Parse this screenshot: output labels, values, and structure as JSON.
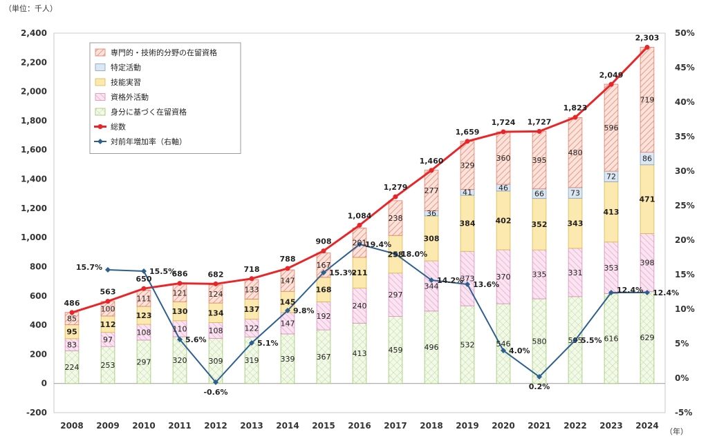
{
  "chart_data": {
    "type": "bar",
    "unit_label": "（単位：千人）",
    "x_unit": "（年）",
    "categories": [
      "2008",
      "2009",
      "2010",
      "2011",
      "2012",
      "2013",
      "2014",
      "2015",
      "2016",
      "2017",
      "2018",
      "2019",
      "2020",
      "2021",
      "2022",
      "2023",
      "2024"
    ],
    "stack_order": [
      "身分に基づく在留資格",
      "資格外活動",
      "技能実習",
      "特定活動",
      "専門的・技術的分野の在留資格"
    ],
    "series": [
      {
        "name": "専門的・技術的分野の在留資格",
        "pattern": "diag",
        "color": "#f4b8a8",
        "stroke": "#e07a62",
        "values": [
          85,
          100,
          111,
          121,
          124,
          133,
          147,
          167,
          201,
          238,
          277,
          329,
          360,
          395,
          480,
          596,
          719
        ],
        "labels": [
          "85",
          "100",
          "111",
          "121",
          "124",
          "133",
          "147",
          "167",
          "201",
          "238",
          "277",
          "329",
          "360",
          "395",
          "480",
          "596",
          "719"
        ]
      },
      {
        "name": "特定活動",
        "pattern": "solid",
        "color": "#dbe8f3",
        "stroke": "#7f9fbf",
        "values": [
          0,
          0,
          0,
          0,
          0,
          0,
          0,
          0,
          0,
          0,
          36,
          41,
          46,
          66,
          73,
          72,
          86
        ],
        "labels": [
          "",
          "",
          "",
          "",
          "",
          "",
          "",
          "",
          "",
          "",
          "36",
          "41",
          "46",
          "66",
          "73",
          "72",
          "86"
        ]
      },
      {
        "name": "技能実習",
        "pattern": "solid",
        "color": "#fce9b0",
        "stroke": "#d9b84a",
        "values": [
          95,
          112,
          123,
          130,
          134,
          137,
          145,
          168,
          211,
          258,
          308,
          384,
          402,
          352,
          343,
          413,
          471
        ],
        "labels": [
          "95",
          "112",
          "123",
          "130",
          "134",
          "137",
          "145",
          "168",
          "211",
          "258",
          "308",
          "384",
          "402",
          "352",
          "343",
          "413",
          "471"
        ]
      },
      {
        "name": "資格外活動",
        "pattern": "diag2",
        "color": "#f7d6ea",
        "stroke": "#d98ab9",
        "values": [
          83,
          97,
          108,
          110,
          108,
          122,
          147,
          192,
          240,
          297,
          344,
          373,
          370,
          335,
          331,
          353,
          398
        ],
        "labels": [
          "83",
          "97",
          "108",
          "110",
          "108",
          "122",
          "147",
          "192",
          "240",
          "297",
          "344",
          "373",
          "370",
          "335",
          "331",
          "353",
          "398"
        ]
      },
      {
        "name": "身分に基づく在留資格",
        "pattern": "cross",
        "color": "#e8f3d3",
        "stroke": "#9cc46b",
        "values": [
          224,
          253,
          297,
          320,
          309,
          319,
          339,
          367,
          413,
          459,
          496,
          532,
          546,
          580,
          595,
          616,
          629
        ],
        "labels": [
          "224",
          "253",
          "297",
          "320",
          "309",
          "319",
          "339",
          "367",
          "413",
          "459",
          "496",
          "532",
          "546",
          "580",
          "595",
          "616",
          "629"
        ]
      }
    ],
    "total": {
      "name": "総数",
      "color": "#e8262a",
      "values": [
        486,
        563,
        650,
        686,
        682,
        718,
        788,
        908,
        1084,
        1279,
        1460,
        1659,
        1724,
        1727,
        1823,
        2049,
        2303
      ],
      "labels": [
        "486",
        "563",
        "650",
        "686",
        "682",
        "718",
        "788",
        "908",
        "1,084",
        "1,279",
        "1,460",
        "1,659",
        "1,724",
        "1,727",
        "1,823",
        "2,049",
        "2,303"
      ]
    },
    "growth": {
      "name": "対前年増加率（右軸）",
      "color": "#2d5f8f",
      "values": [
        null,
        15.7,
        15.5,
        5.6,
        -0.6,
        5.1,
        9.8,
        15.3,
        19.4,
        18.0,
        14.2,
        13.6,
        4.0,
        0.2,
        5.5,
        12.4,
        12.4
      ],
      "labels": [
        "",
        "15.7%",
        "15.5%",
        "5.6%",
        "-0.6%",
        "5.1%",
        "9.8%",
        "15.3%",
        "19.4%",
        "18.0%",
        "14.2%",
        "13.6%",
        "4.0%",
        "0.2%",
        "5.5%",
        "12.4%",
        "12.4%"
      ]
    },
    "bold_series": [
      "技能実習"
    ],
    "y_left": {
      "min": -200,
      "max": 2400,
      "ticks": [
        -200,
        0,
        200,
        400,
        600,
        800,
        1000,
        1200,
        1400,
        1600,
        1800,
        2000,
        2200,
        2400
      ],
      "tick_labels": [
        "-200",
        "0",
        "200",
        "400",
        "600",
        "800",
        "1,000",
        "1,200",
        "1,400",
        "1,600",
        "1,800",
        "2,000",
        "2,200",
        "2,400"
      ]
    },
    "y_right": {
      "min": -5,
      "max": 50,
      "ticks": [
        -5,
        0,
        5,
        10,
        15,
        20,
        25,
        30,
        35,
        40,
        45,
        50
      ],
      "tick_labels": [
        "-5%",
        "0%",
        "5%",
        "10%",
        "15%",
        "20%",
        "25%",
        "30%",
        "35%",
        "40%",
        "45%",
        "50%"
      ]
    },
    "legend": {
      "position": "top-left-inside",
      "items": [
        {
          "label": "専門的・技術的分野の在留資格",
          "kind": "box",
          "ref": 0
        },
        {
          "label": "特定活動",
          "kind": "box",
          "ref": 1
        },
        {
          "label": "技能実習",
          "kind": "box",
          "ref": 2
        },
        {
          "label": "資格外活動",
          "kind": "box",
          "ref": 3
        },
        {
          "label": "身分に基づく在留資格",
          "kind": "box",
          "ref": 4
        },
        {
          "label": "総数",
          "kind": "line-total"
        },
        {
          "label": "対前年増加率（右軸）",
          "kind": "line-growth"
        }
      ]
    },
    "grid": false
  }
}
